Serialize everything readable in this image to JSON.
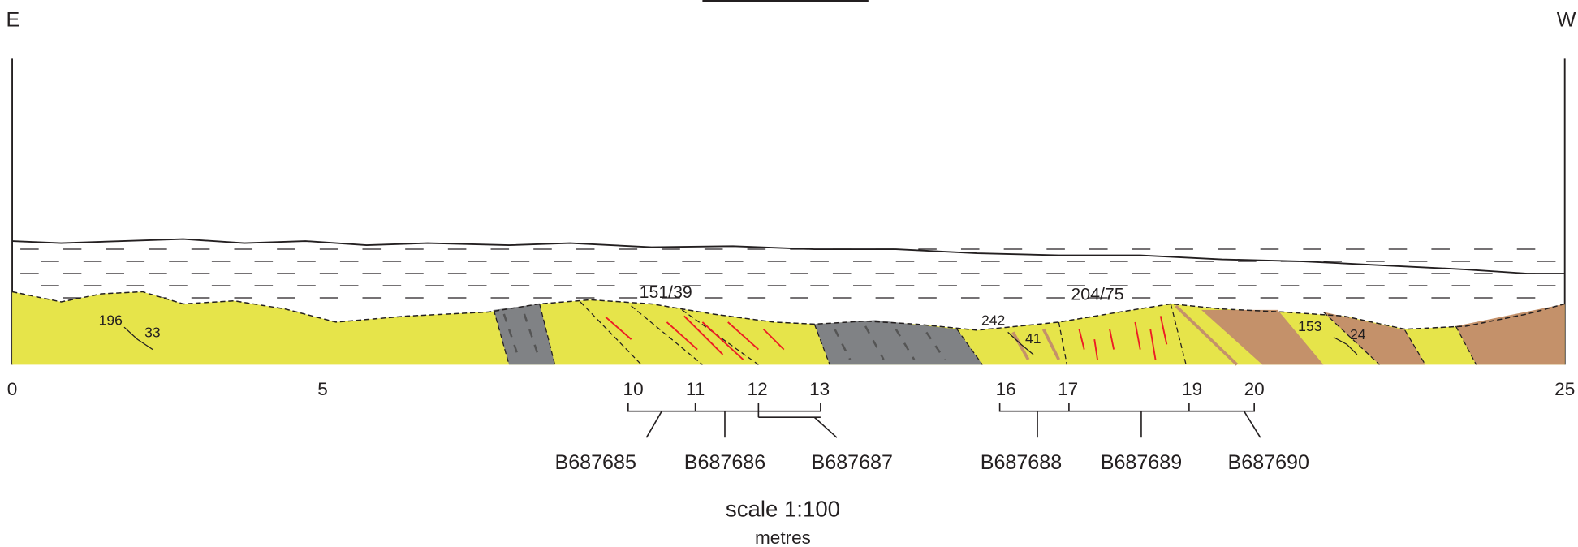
{
  "header": {
    "east": "E",
    "west": "W"
  },
  "axis": {
    "ticks": [
      0,
      5,
      10,
      11,
      12,
      13,
      16,
      17,
      19,
      20,
      25
    ]
  },
  "annotations": {
    "upper_left": "151/39",
    "upper_right": "204/75",
    "dip_1_strike": "196",
    "dip_1_dip": "33",
    "dip_2_strike": "242",
    "dip_2_dip": "41",
    "dip_3_strike": "153",
    "dip_3_dip": "24"
  },
  "samples": [
    "B687685",
    "B687686",
    "B687687",
    "B687688",
    "B687689",
    "B687690"
  ],
  "footer": {
    "scale": "scale 1:100",
    "unit": "metres"
  }
}
